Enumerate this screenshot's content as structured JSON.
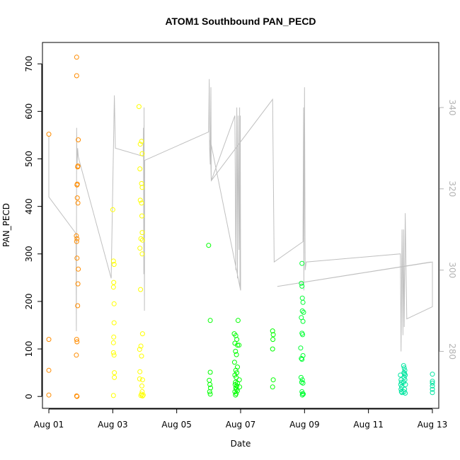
{
  "chart_data": {
    "type": "scatter",
    "title": "ATOM1 Southbound PAN_PECD",
    "xlabel": "Date",
    "ylabel": "PAN_PECD",
    "x_ticks": [
      "Aug 01",
      "Aug 03",
      "Aug 05",
      "Aug 07",
      "Aug 09",
      "Aug 11",
      "Aug 13"
    ],
    "x_tick_days": [
      1,
      3,
      5,
      7,
      9,
      11,
      13
    ],
    "xlim": [
      0.8,
      13.2
    ],
    "ylim": [
      -25,
      745
    ],
    "y_ticks": [
      0,
      100,
      200,
      300,
      400,
      500,
      600,
      700
    ],
    "y2_ticks": [
      280,
      300,
      320,
      340
    ],
    "y2lim": [
      266,
      356
    ],
    "grid": false,
    "secondary_series_color": "#c0c0c0",
    "series": [
      {
        "color": "#ff8c00",
        "points": [
          [
            1.0,
            552
          ],
          [
            1.0,
            120
          ],
          [
            1.0,
            55
          ],
          [
            1.0,
            3
          ],
          [
            1.87,
            714
          ],
          [
            1.87,
            675
          ],
          [
            1.88,
            445
          ],
          [
            1.89,
            447
          ],
          [
            1.9,
            483
          ],
          [
            1.91,
            485
          ],
          [
            1.92,
            540
          ],
          [
            1.89,
            418
          ],
          [
            1.91,
            407
          ],
          [
            1.86,
            338
          ],
          [
            1.88,
            332
          ],
          [
            1.87,
            326
          ],
          [
            1.88,
            291
          ],
          [
            1.92,
            268
          ],
          [
            1.91,
            237
          ],
          [
            1.9,
            191
          ],
          [
            1.87,
            120
          ],
          [
            1.88,
            115
          ],
          [
            1.86,
            87
          ],
          [
            1.87,
            1
          ],
          [
            1.88,
            0
          ]
        ]
      },
      {
        "color": "#ffff00",
        "points": [
          [
            3.0,
            393
          ],
          [
            3.02,
            285
          ],
          [
            3.04,
            278
          ],
          [
            3.03,
            240
          ],
          [
            3.02,
            230
          ],
          [
            3.04,
            195
          ],
          [
            3.04,
            155
          ],
          [
            3.03,
            125
          ],
          [
            3.02,
            113
          ],
          [
            3.02,
            92
          ],
          [
            3.04,
            87
          ],
          [
            3.05,
            50
          ],
          [
            3.05,
            40
          ],
          [
            3.02,
            2
          ],
          [
            3.82,
            610
          ],
          [
            3.86,
            531
          ],
          [
            3.9,
            537
          ],
          [
            3.92,
            511
          ],
          [
            3.85,
            479
          ],
          [
            3.9,
            448
          ],
          [
            3.92,
            440
          ],
          [
            3.86,
            413
          ],
          [
            3.9,
            407
          ],
          [
            3.91,
            380
          ],
          [
            3.92,
            345
          ],
          [
            3.88,
            332
          ],
          [
            3.93,
            329
          ],
          [
            3.85,
            312
          ],
          [
            3.92,
            300
          ],
          [
            3.87,
            225
          ],
          [
            3.93,
            132
          ],
          [
            3.88,
            106
          ],
          [
            3.84,
            99
          ],
          [
            3.9,
            85
          ],
          [
            3.85,
            52
          ],
          [
            3.84,
            37
          ],
          [
            3.93,
            35
          ],
          [
            3.91,
            22
          ],
          [
            3.92,
            10
          ],
          [
            3.9,
            5
          ],
          [
            3.88,
            2
          ],
          [
            3.93,
            1
          ],
          [
            3.95,
            3
          ]
        ]
      },
      {
        "color": "#00ff00",
        "points": [
          [
            6.0,
            318
          ],
          [
            6.05,
            160
          ],
          [
            6.05,
            51
          ],
          [
            6.02,
            34
          ],
          [
            6.04,
            25
          ],
          [
            6.06,
            18
          ],
          [
            6.03,
            10
          ],
          [
            6.05,
            5
          ],
          [
            6.8,
            132
          ],
          [
            6.85,
            128
          ],
          [
            6.88,
            120
          ],
          [
            6.82,
            112
          ],
          [
            6.9,
            108
          ],
          [
            6.84,
            95
          ],
          [
            6.87,
            88
          ],
          [
            6.81,
            72
          ],
          [
            6.9,
            62
          ],
          [
            6.85,
            55
          ],
          [
            6.88,
            50
          ],
          [
            6.82,
            45
          ],
          [
            6.86,
            40
          ],
          [
            6.84,
            30
          ],
          [
            6.9,
            28
          ],
          [
            6.83,
            25
          ],
          [
            6.88,
            22
          ],
          [
            6.85,
            18
          ],
          [
            6.87,
            15
          ],
          [
            6.9,
            12
          ],
          [
            6.82,
            10
          ],
          [
            6.86,
            6
          ],
          [
            6.84,
            3
          ],
          [
            6.95,
            108
          ],
          [
            6.97,
            20
          ],
          [
            6.96,
            35
          ],
          [
            6.92,
            160
          ],
          [
            8.0,
            138
          ],
          [
            8.02,
            130
          ],
          [
            8.01,
            120
          ],
          [
            8.0,
            100
          ],
          [
            8.02,
            35
          ],
          [
            8.0,
            20
          ]
        ]
      },
      {
        "color": "#00ff33",
        "points": [
          [
            8.92,
            280
          ],
          [
            8.9,
            238
          ],
          [
            8.92,
            232
          ],
          [
            8.93,
            207
          ],
          [
            8.95,
            198
          ],
          [
            8.93,
            180
          ],
          [
            8.97,
            177
          ],
          [
            8.9,
            166
          ],
          [
            8.95,
            158
          ],
          [
            8.92,
            133
          ],
          [
            8.94,
            130
          ],
          [
            8.88,
            102
          ],
          [
            8.95,
            86
          ],
          [
            8.9,
            80
          ],
          [
            8.92,
            78
          ],
          [
            8.89,
            40
          ],
          [
            8.93,
            35
          ],
          [
            8.91,
            30
          ],
          [
            8.95,
            28
          ],
          [
            8.92,
            10
          ],
          [
            8.94,
            6
          ],
          [
            8.93,
            3
          ],
          [
            8.96,
            5
          ]
        ]
      },
      {
        "color": "#00e5a0",
        "points": [
          [
            12.0,
            45
          ],
          [
            12.02,
            35
          ],
          [
            12.03,
            30
          ],
          [
            12.01,
            25
          ],
          [
            12.04,
            20
          ],
          [
            12.02,
            15
          ],
          [
            12.03,
            10
          ],
          [
            12.05,
            8
          ],
          [
            12.1,
            65
          ],
          [
            12.12,
            60
          ],
          [
            12.14,
            55
          ],
          [
            12.11,
            50
          ],
          [
            12.13,
            48
          ],
          [
            12.15,
            45
          ],
          [
            12.12,
            40
          ],
          [
            12.14,
            35
          ],
          [
            12.1,
            30
          ],
          [
            12.16,
            25
          ],
          [
            12.13,
            15
          ],
          [
            12.11,
            10
          ],
          [
            12.15,
            7
          ],
          [
            13.0,
            47
          ],
          [
            13.0,
            32
          ],
          [
            13.0,
            28
          ],
          [
            13.0,
            22
          ],
          [
            13.0,
            15
          ],
          [
            13.0,
            8
          ]
        ]
      }
    ],
    "secondary_line": [
      [
        1.0,
        333
      ],
      [
        1.0,
        318
      ],
      [
        1.85,
        309
      ],
      [
        1.86,
        285
      ],
      [
        1.87,
        335
      ],
      [
        1.88,
        325
      ],
      [
        1.9,
        330
      ],
      [
        1.92,
        328
      ],
      [
        1.95,
        327
      ],
      [
        2.95,
        298
      ],
      [
        3.05,
        343
      ],
      [
        3.08,
        330
      ],
      [
        3.95,
        328
      ],
      [
        3.96,
        335
      ],
      [
        3.97,
        299
      ],
      [
        3.98,
        340
      ],
      [
        3.99,
        290
      ],
      [
        4.0,
        327
      ],
      [
        6.0,
        334
      ],
      [
        6.02,
        347
      ],
      [
        6.03,
        330
      ],
      [
        6.05,
        326
      ],
      [
        6.07,
        345
      ],
      [
        6.08,
        322
      ],
      [
        6.82,
        338
      ],
      [
        6.85,
        300
      ],
      [
        6.88,
        340
      ],
      [
        6.9,
        298
      ],
      [
        6.92,
        338
      ],
      [
        6.95,
        305
      ],
      [
        6.97,
        340
      ],
      [
        6.98,
        296
      ],
      [
        6.99,
        338
      ],
      [
        7.0,
        295
      ],
      [
        6.05,
        332
      ],
      [
        6.08,
        322
      ],
      [
        8.0,
        342
      ],
      [
        8.05,
        302
      ],
      [
        8.95,
        307
      ],
      [
        8.97,
        340
      ],
      [
        8.98,
        295
      ],
      [
        9.0,
        345
      ],
      [
        9.02,
        300
      ],
      [
        9.05,
        302
      ],
      [
        12.0,
        304
      ],
      [
        12.02,
        280
      ],
      [
        12.05,
        310
      ],
      [
        12.08,
        284
      ],
      [
        12.1,
        310
      ],
      [
        12.12,
        286
      ],
      [
        12.15,
        314
      ],
      [
        12.2,
        288
      ],
      [
        13.0,
        291
      ],
      [
        13.0,
        302
      ],
      [
        8.15,
        296
      ],
      [
        12.95,
        302
      ]
    ]
  }
}
